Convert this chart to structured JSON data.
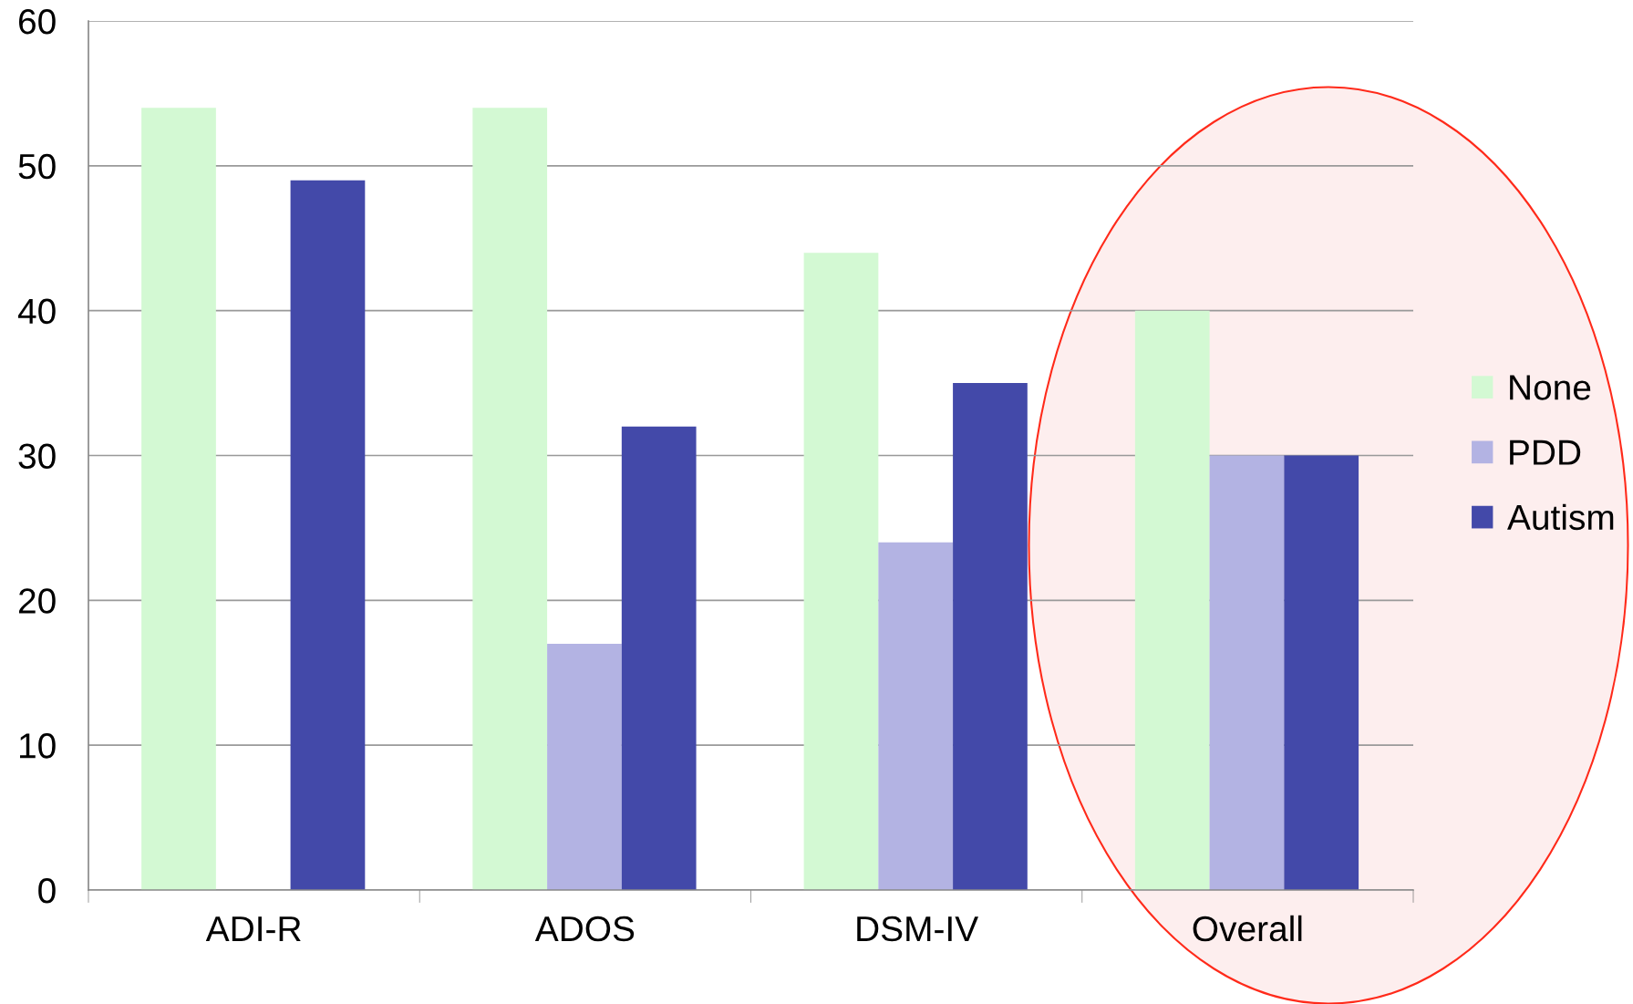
{
  "chart_data": {
    "type": "bar",
    "categories": [
      "ADI-R",
      "ADOS",
      "DSM-IV",
      "Overall"
    ],
    "series": [
      {
        "name": "None",
        "color": "#d3f9d3",
        "values": [
          54,
          54,
          44,
          40
        ]
      },
      {
        "name": "PDD",
        "color": "#b3b3e3",
        "values": [
          0,
          17,
          24,
          30
        ]
      },
      {
        "name": "Autism",
        "color": "#4349a9",
        "values": [
          49,
          32,
          35,
          30
        ]
      }
    ],
    "ylim": [
      0,
      60
    ],
    "yticks": [
      0,
      10,
      20,
      30,
      40,
      50,
      60
    ],
    "grid": "y",
    "legend": "right"
  }
}
